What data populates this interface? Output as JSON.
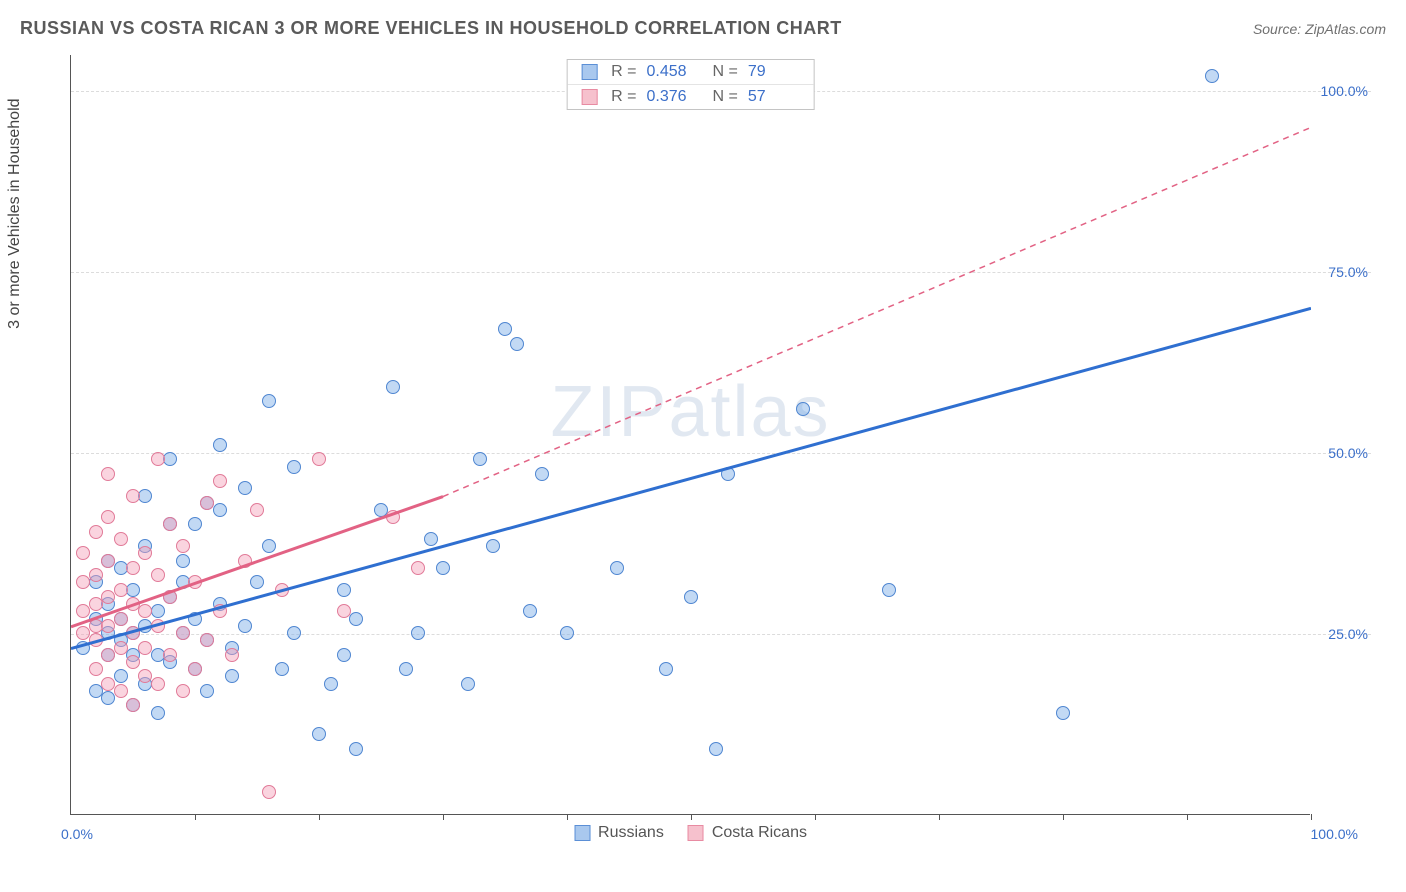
{
  "title": "RUSSIAN VS COSTA RICAN 3 OR MORE VEHICLES IN HOUSEHOLD CORRELATION CHART",
  "source_label": "Source:",
  "source_value": "ZipAtlas.com",
  "y_axis_title": "3 or more Vehicles in Household",
  "watermark": "ZIPatlas",
  "chart": {
    "type": "scatter",
    "xlim": [
      0,
      100
    ],
    "ylim": [
      0,
      105
    ],
    "grid_color": "#dcdcdc",
    "background_color": "#ffffff",
    "y_ticks": [
      25,
      50,
      75,
      100
    ],
    "y_tick_labels": [
      "25.0%",
      "50.0%",
      "75.0%",
      "100.0%"
    ],
    "x_ticks": [
      10,
      20,
      30,
      40,
      50,
      60,
      70,
      80,
      90,
      100
    ],
    "x_label_min": "0.0%",
    "x_label_max": "100.0%",
    "marker_radius": 7,
    "series": [
      {
        "name": "Russians",
        "color_fill": "rgba(120,170,230,0.45)",
        "color_stroke": "#4f86d1",
        "r": "0.458",
        "n": "79",
        "regression": {
          "x1": 0,
          "y1": 23,
          "x2": 100,
          "y2": 70,
          "stroke": "#2f6fd0",
          "width": 3,
          "dash": "none"
        },
        "points": [
          [
            1,
            23
          ],
          [
            2,
            17
          ],
          [
            2,
            27
          ],
          [
            2,
            32
          ],
          [
            3,
            16
          ],
          [
            3,
            22
          ],
          [
            3,
            25
          ],
          [
            3,
            29
          ],
          [
            3,
            35
          ],
          [
            4,
            19
          ],
          [
            4,
            24
          ],
          [
            4,
            27
          ],
          [
            4,
            34
          ],
          [
            5,
            15
          ],
          [
            5,
            22
          ],
          [
            5,
            25
          ],
          [
            5,
            31
          ],
          [
            6,
            18
          ],
          [
            6,
            26
          ],
          [
            6,
            37
          ],
          [
            6,
            44
          ],
          [
            7,
            14
          ],
          [
            7,
            22
          ],
          [
            7,
            28
          ],
          [
            8,
            21
          ],
          [
            8,
            30
          ],
          [
            8,
            40
          ],
          [
            8,
            49
          ],
          [
            9,
            25
          ],
          [
            9,
            32
          ],
          [
            9,
            35
          ],
          [
            10,
            20
          ],
          [
            10,
            27
          ],
          [
            10,
            40
          ],
          [
            11,
            17
          ],
          [
            11,
            24
          ],
          [
            11,
            43
          ],
          [
            12,
            29
          ],
          [
            12,
            42
          ],
          [
            12,
            51
          ],
          [
            13,
            19
          ],
          [
            13,
            23
          ],
          [
            14,
            26
          ],
          [
            14,
            45
          ],
          [
            15,
            32
          ],
          [
            16,
            37
          ],
          [
            16,
            57
          ],
          [
            17,
            20
          ],
          [
            18,
            25
          ],
          [
            18,
            48
          ],
          [
            20,
            11
          ],
          [
            21,
            18
          ],
          [
            22,
            22
          ],
          [
            22,
            31
          ],
          [
            23,
            9
          ],
          [
            23,
            27
          ],
          [
            25,
            42
          ],
          [
            26,
            59
          ],
          [
            27,
            20
          ],
          [
            28,
            25
          ],
          [
            29,
            38
          ],
          [
            30,
            34
          ],
          [
            32,
            18
          ],
          [
            33,
            49
          ],
          [
            34,
            37
          ],
          [
            35,
            67
          ],
          [
            36,
            65
          ],
          [
            37,
            28
          ],
          [
            38,
            47
          ],
          [
            40,
            25
          ],
          [
            44,
            34
          ],
          [
            48,
            20
          ],
          [
            50,
            30
          ],
          [
            52,
            9
          ],
          [
            53,
            47
          ],
          [
            59,
            56
          ],
          [
            66,
            31
          ],
          [
            80,
            14
          ],
          [
            92,
            102
          ]
        ]
      },
      {
        "name": "Costa Ricans",
        "color_fill": "rgba(245,160,185,0.45)",
        "color_stroke": "#e17a98",
        "r": "0.376",
        "n": "57",
        "regression": {
          "x1": 0,
          "y1": 26,
          "x2": 30,
          "y2": 44,
          "stroke": "#e26284",
          "width": 3,
          "dash": "none",
          "ext_x2": 100,
          "ext_y2": 95,
          "ext_dash": "6,5"
        },
        "points": [
          [
            1,
            25
          ],
          [
            1,
            28
          ],
          [
            1,
            32
          ],
          [
            1,
            36
          ],
          [
            2,
            20
          ],
          [
            2,
            24
          ],
          [
            2,
            26
          ],
          [
            2,
            29
          ],
          [
            2,
            33
          ],
          [
            2,
            39
          ],
          [
            3,
            18
          ],
          [
            3,
            22
          ],
          [
            3,
            26
          ],
          [
            3,
            30
          ],
          [
            3,
            35
          ],
          [
            3,
            41
          ],
          [
            3,
            47
          ],
          [
            4,
            17
          ],
          [
            4,
            23
          ],
          [
            4,
            27
          ],
          [
            4,
            31
          ],
          [
            4,
            38
          ],
          [
            5,
            15
          ],
          [
            5,
            21
          ],
          [
            5,
            25
          ],
          [
            5,
            29
          ],
          [
            5,
            34
          ],
          [
            5,
            44
          ],
          [
            6,
            19
          ],
          [
            6,
            23
          ],
          [
            6,
            28
          ],
          [
            6,
            36
          ],
          [
            7,
            18
          ],
          [
            7,
            26
          ],
          [
            7,
            33
          ],
          [
            7,
            49
          ],
          [
            8,
            22
          ],
          [
            8,
            30
          ],
          [
            8,
            40
          ],
          [
            9,
            17
          ],
          [
            9,
            25
          ],
          [
            9,
            37
          ],
          [
            10,
            20
          ],
          [
            10,
            32
          ],
          [
            11,
            24
          ],
          [
            11,
            43
          ],
          [
            12,
            28
          ],
          [
            12,
            46
          ],
          [
            13,
            22
          ],
          [
            14,
            35
          ],
          [
            15,
            42
          ],
          [
            16,
            3
          ],
          [
            17,
            31
          ],
          [
            20,
            49
          ],
          [
            22,
            28
          ],
          [
            26,
            41
          ],
          [
            28,
            34
          ]
        ]
      }
    ],
    "legend": [
      {
        "label": "Russians",
        "sw": "sw-blue"
      },
      {
        "label": "Costa Ricans",
        "sw": "sw-pink"
      }
    ]
  }
}
